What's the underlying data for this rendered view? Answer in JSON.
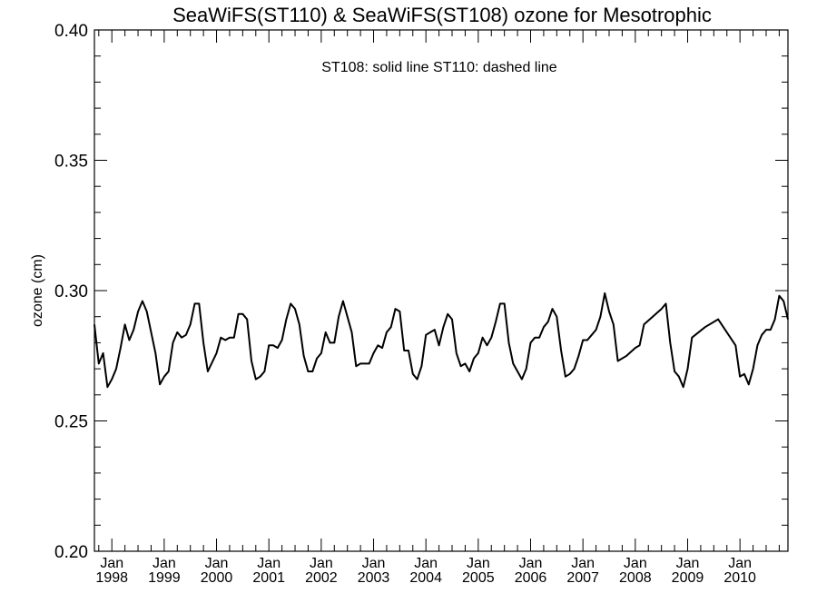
{
  "chart_data": {
    "type": "line",
    "title": "SeaWiFS(ST110) & SeaWiFS(ST108)  ozone for Mesotrophic",
    "xlabel": "",
    "ylabel": "ozone (cm)",
    "annotation": "ST108: solid line   ST110: dashed line",
    "ylim": [
      0.2,
      0.4
    ],
    "xlim": [
      "1997-09",
      "2010-12"
    ],
    "y_ticks": [
      "0.20",
      "0.25",
      "0.30",
      "0.35",
      "0.40"
    ],
    "x_ticks": [
      {
        "month": "Jan",
        "year": "1998"
      },
      {
        "month": "Jan",
        "year": "1999"
      },
      {
        "month": "Jan",
        "year": "2000"
      },
      {
        "month": "Jan",
        "year": "2001"
      },
      {
        "month": "Jan",
        "year": "2002"
      },
      {
        "month": "Jan",
        "year": "2003"
      },
      {
        "month": "Jan",
        "year": "2004"
      },
      {
        "month": "Jan",
        "year": "2005"
      },
      {
        "month": "Jan",
        "year": "2006"
      },
      {
        "month": "Jan",
        "year": "2007"
      },
      {
        "month": "Jan",
        "year": "2008"
      },
      {
        "month": "Jan",
        "year": "2009"
      },
      {
        "month": "Jan",
        "year": "2010"
      }
    ],
    "grid": false,
    "line_color": "#000000",
    "series": [
      {
        "style": "solid",
        "points": [
          [
            "1997-09",
            0.287
          ],
          [
            "1997-10",
            0.272
          ],
          [
            "1997-11",
            0.276
          ],
          [
            "1997-12",
            0.263
          ],
          [
            "1998-01",
            0.266
          ],
          [
            "1998-02",
            0.27
          ],
          [
            "1998-03",
            0.278
          ],
          [
            "1998-04",
            0.287
          ],
          [
            "1998-05",
            0.281
          ],
          [
            "1998-06",
            0.285
          ],
          [
            "1998-07",
            0.292
          ],
          [
            "1998-08",
            0.296
          ],
          [
            "1998-09",
            0.292
          ],
          [
            "1998-10",
            0.284
          ],
          [
            "1998-11",
            0.276
          ],
          [
            "1998-12",
            0.264
          ],
          [
            "1999-01",
            0.267
          ],
          [
            "1999-02",
            0.269
          ],
          [
            "1999-03",
            0.28
          ],
          [
            "1999-04",
            0.284
          ],
          [
            "1999-05",
            0.282
          ],
          [
            "1999-06",
            0.283
          ],
          [
            "1999-07",
            0.287
          ],
          [
            "1999-08",
            0.295
          ],
          [
            "1999-09",
            0.295
          ],
          [
            "1999-10",
            0.28
          ],
          [
            "1999-11",
            0.269
          ],
          [
            "2000-01",
            0.276
          ],
          [
            "2000-02",
            0.282
          ],
          [
            "2000-03",
            0.281
          ],
          [
            "2000-04",
            0.282
          ],
          [
            "2000-05",
            0.282
          ],
          [
            "2000-06",
            0.291
          ],
          [
            "2000-07",
            0.291
          ],
          [
            "2000-08",
            0.289
          ],
          [
            "2000-09",
            0.273
          ],
          [
            "2000-10",
            0.266
          ],
          [
            "2000-11",
            0.267
          ],
          [
            "2000-12",
            0.269
          ],
          [
            "2001-01",
            0.279
          ],
          [
            "2001-02",
            0.279
          ],
          [
            "2001-03",
            0.278
          ],
          [
            "2001-04",
            0.281
          ],
          [
            "2001-05",
            0.289
          ],
          [
            "2001-06",
            0.295
          ],
          [
            "2001-07",
            0.293
          ],
          [
            "2001-08",
            0.287
          ],
          [
            "2001-09",
            0.275
          ],
          [
            "2001-10",
            0.269
          ],
          [
            "2001-11",
            0.269
          ],
          [
            "2001-12",
            0.274
          ],
          [
            "2002-01",
            0.276
          ],
          [
            "2002-02",
            0.284
          ],
          [
            "2002-03",
            0.28
          ],
          [
            "2002-04",
            0.28
          ],
          [
            "2002-05",
            0.29
          ],
          [
            "2002-06",
            0.296
          ],
          [
            "2002-07",
            0.29
          ],
          [
            "2002-08",
            0.284
          ],
          [
            "2002-09",
            0.271
          ],
          [
            "2002-10",
            0.272
          ],
          [
            "2002-11",
            0.272
          ],
          [
            "2002-12",
            0.272
          ],
          [
            "2003-01",
            0.276
          ],
          [
            "2003-02",
            0.279
          ],
          [
            "2003-03",
            0.278
          ],
          [
            "2003-04",
            0.284
          ],
          [
            "2003-05",
            0.286
          ],
          [
            "2003-06",
            0.293
          ],
          [
            "2003-07",
            0.292
          ],
          [
            "2003-08",
            0.277
          ],
          [
            "2003-09",
            0.277
          ],
          [
            "2003-10",
            0.268
          ],
          [
            "2003-11",
            0.266
          ],
          [
            "2003-12",
            0.271
          ],
          [
            "2004-01",
            0.283
          ],
          [
            "2004-02",
            0.284
          ],
          [
            "2004-03",
            0.285
          ],
          [
            "2004-04",
            0.279
          ],
          [
            "2004-05",
            0.286
          ],
          [
            "2004-06",
            0.291
          ],
          [
            "2004-07",
            0.289
          ],
          [
            "2004-08",
            0.276
          ],
          [
            "2004-09",
            0.271
          ],
          [
            "2004-10",
            0.272
          ],
          [
            "2004-11",
            0.269
          ],
          [
            "2004-12",
            0.274
          ],
          [
            "2005-01",
            0.276
          ],
          [
            "2005-02",
            0.282
          ],
          [
            "2005-03",
            0.279
          ],
          [
            "2005-04",
            0.282
          ],
          [
            "2005-05",
            0.288
          ],
          [
            "2005-06",
            0.295
          ],
          [
            "2005-07",
            0.295
          ],
          [
            "2005-08",
            0.28
          ],
          [
            "2005-09",
            0.272
          ],
          [
            "2005-10",
            0.269
          ],
          [
            "2005-11",
            0.266
          ],
          [
            "2005-12",
            0.27
          ],
          [
            "2006-01",
            0.28
          ],
          [
            "2006-02",
            0.282
          ],
          [
            "2006-03",
            0.282
          ],
          [
            "2006-04",
            0.286
          ],
          [
            "2006-05",
            0.288
          ],
          [
            "2006-06",
            0.293
          ],
          [
            "2006-07",
            0.29
          ],
          [
            "2006-08",
            0.277
          ],
          [
            "2006-09",
            0.267
          ],
          [
            "2006-10",
            0.268
          ],
          [
            "2006-11",
            0.27
          ],
          [
            "2006-12",
            0.275
          ],
          [
            "2007-01",
            0.281
          ],
          [
            "2007-02",
            0.281
          ],
          [
            "2007-03",
            0.283
          ],
          [
            "2007-04",
            0.285
          ],
          [
            "2007-05",
            0.29
          ],
          [
            "2007-06",
            0.299
          ],
          [
            "2007-07",
            0.292
          ],
          [
            "2007-08",
            0.287
          ],
          [
            "2007-09",
            0.273
          ],
          [
            "2007-11",
            0.275
          ],
          [
            "2008-01",
            0.278
          ],
          [
            "2008-02",
            0.279
          ],
          [
            "2008-03",
            0.287
          ],
          [
            "2008-05",
            0.29
          ],
          [
            "2008-07",
            0.293
          ],
          [
            "2008-08",
            0.295
          ],
          [
            "2008-09",
            0.28
          ],
          [
            "2008-10",
            0.269
          ],
          [
            "2008-11",
            0.267
          ],
          [
            "2008-12",
            0.263
          ],
          [
            "2009-01",
            0.27
          ],
          [
            "2009-02",
            0.282
          ],
          [
            "2009-05",
            0.286
          ],
          [
            "2009-08",
            0.289
          ],
          [
            "2009-12",
            0.279
          ],
          [
            "2010-01",
            0.267
          ],
          [
            "2010-02",
            0.268
          ],
          [
            "2010-03",
            0.264
          ],
          [
            "2010-04",
            0.27
          ],
          [
            "2010-05",
            0.279
          ],
          [
            "2010-06",
            0.283
          ],
          [
            "2010-07",
            0.285
          ],
          [
            "2010-08",
            0.285
          ],
          [
            "2010-09",
            0.289
          ],
          [
            "2010-10",
            0.298
          ],
          [
            "2010-11",
            0.296
          ],
          [
            "2010-12",
            0.289
          ]
        ]
      }
    ]
  }
}
